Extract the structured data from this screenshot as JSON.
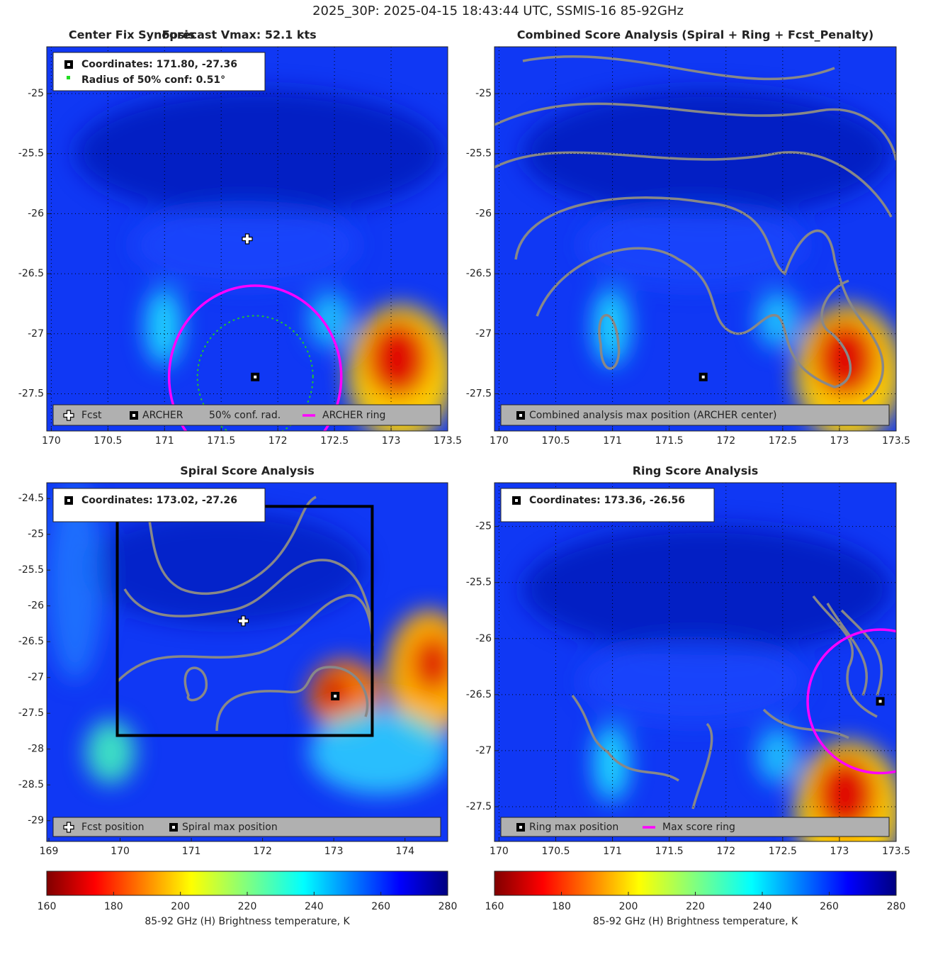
{
  "title": "2025_30P: 2025-04-15 18:43:44 UTC, SSMIS-16 85-92GHz",
  "chart_data": [
    {
      "type": "map",
      "title": "Center Fix Synopsis",
      "subtitle": "Forecast Vmax: 52.1 kts",
      "xlim": [
        169.96,
        173.5
      ],
      "ylim": [
        -27.81,
        -24.61
      ],
      "xticks": [
        170,
        170.5,
        171,
        171.5,
        172,
        172.5,
        173,
        173.5
      ],
      "yticks": [
        -25,
        -25.5,
        -26,
        -26.5,
        -27,
        -27.5
      ],
      "grid": true,
      "info": [
        "Coordinates: 171.80, -27.36",
        "Radius of 50% conf: 0.51°"
      ],
      "markers": [
        {
          "x": 171.73,
          "y": -26.21,
          "symbol": "plus"
        },
        {
          "x": 171.8,
          "y": -27.36,
          "symbol": "square"
        }
      ],
      "circles": [
        {
          "x": 171.8,
          "y": -27.36,
          "radius": 0.76,
          "color": "#ff00ff",
          "style": "solid"
        },
        {
          "x": 171.8,
          "y": -27.36,
          "radius": 0.51,
          "color": "#22cc22",
          "style": "dotted"
        }
      ],
      "legend": [
        {
          "name": "Fcst",
          "symbol": "plus"
        },
        {
          "name": "ARCHER",
          "symbol": "square"
        },
        {
          "name": "50% conf. rad.",
          "symbol": "none"
        },
        {
          "name": "ARCHER ring",
          "symbol": "line",
          "color": "#ff00ff"
        }
      ]
    },
    {
      "type": "map",
      "title": "Combined Score Analysis (Spiral + Ring + Fcst_Penalty)",
      "xlim": [
        169.96,
        173.5
      ],
      "ylim": [
        -27.81,
        -24.61
      ],
      "xticks": [
        170,
        170.5,
        171,
        171.5,
        172,
        172.5,
        173,
        173.5
      ],
      "yticks": [
        -25,
        -25.5,
        -26,
        -26.5,
        -27,
        -27.5
      ],
      "grid": true,
      "markers": [
        {
          "x": 171.8,
          "y": -27.36,
          "symbol": "square"
        }
      ],
      "legend": [
        {
          "name": "Combined analysis max position (ARCHER center)",
          "symbol": "square"
        }
      ]
    },
    {
      "type": "map",
      "title": "Spiral Score Analysis",
      "xlim": [
        168.97,
        174.6
      ],
      "ylim": [
        -29.29,
        -24.28
      ],
      "xticks": [
        169,
        170,
        171,
        172,
        173,
        174
      ],
      "yticks": [
        -24.5,
        -25,
        -25.5,
        -26,
        -26.5,
        -27,
        -27.5,
        -28,
        -28.5,
        -29
      ],
      "grid": false,
      "info": [
        "Coordinates: 173.02, -27.26"
      ],
      "box": {
        "x": [
          169.96,
          173.54
        ],
        "y": [
          -27.81,
          -24.61
        ]
      },
      "markers": [
        {
          "x": 171.73,
          "y": -26.21,
          "symbol": "plus"
        },
        {
          "x": 173.02,
          "y": -27.26,
          "symbol": "square"
        }
      ],
      "legend": [
        {
          "name": "Fcst position",
          "symbol": "plus"
        },
        {
          "name": "Spiral max position",
          "symbol": "square"
        }
      ]
    },
    {
      "type": "map",
      "title": "Ring Score Analysis",
      "xlim": [
        169.96,
        173.5
      ],
      "ylim": [
        -27.81,
        -24.61
      ],
      "xticks": [
        170,
        170.5,
        171,
        171.5,
        172,
        172.5,
        173,
        173.5
      ],
      "yticks": [
        -25,
        -25.5,
        -26,
        -26.5,
        -27,
        -27.5
      ],
      "grid": true,
      "info": [
        "Coordinates: 173.36, -26.56"
      ],
      "markers": [
        {
          "x": 173.36,
          "y": -26.56,
          "symbol": "square"
        }
      ],
      "circles": [
        {
          "x": 173.36,
          "y": -26.56,
          "radius": 0.64,
          "color": "#ff00ff",
          "style": "solid"
        }
      ],
      "legend": [
        {
          "name": "Ring max position",
          "symbol": "square"
        },
        {
          "name": "Max score ring",
          "symbol": "line",
          "color": "#ff00ff"
        }
      ]
    },
    {
      "type": "colorbar",
      "clim": [
        160,
        280
      ],
      "ticks": [
        160,
        180,
        200,
        220,
        240,
        260,
        280
      ],
      "label": "85-92 GHz (H) Brightness temperature, K"
    },
    {
      "type": "colorbar",
      "clim": [
        160,
        280
      ],
      "ticks": [
        160,
        180,
        200,
        220,
        240,
        260,
        280
      ],
      "label": "85-92 GHz (H) Brightness temperature, K"
    }
  ]
}
